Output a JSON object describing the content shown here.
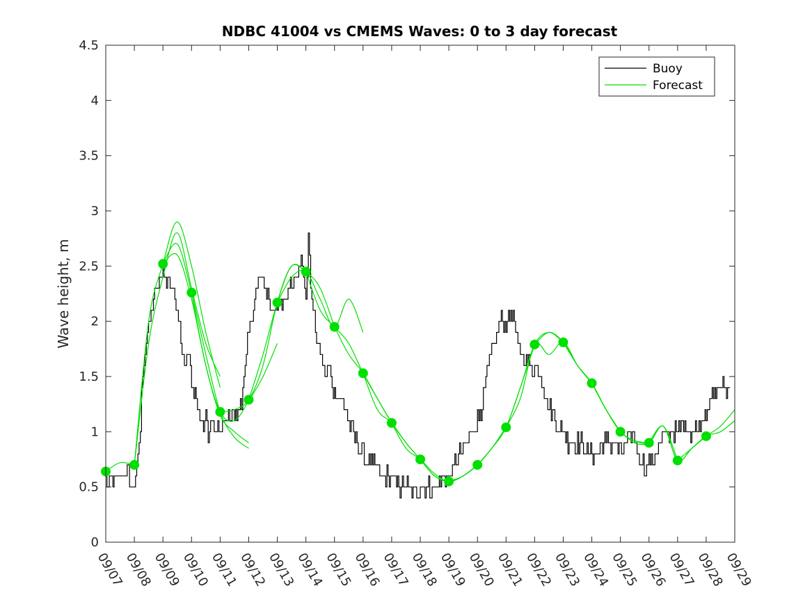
{
  "chart_data": {
    "type": "line",
    "title": "NDBC 41004 vs CMEMS Waves: 0 to 3 day forecast",
    "xlabel": "",
    "ylabel": "Wave height, m",
    "xlim": [
      0,
      22
    ],
    "ylim": [
      0,
      4.5
    ],
    "yticks": [
      0,
      0.5,
      1,
      1.5,
      2,
      2.5,
      3,
      3.5,
      4,
      4.5
    ],
    "ytick_labels": [
      "0",
      "0.5",
      "1",
      "1.5",
      "2",
      "2.5",
      "3",
      "3.5",
      "4",
      "4.5"
    ],
    "xtick_labels": [
      "09/07",
      "09/08",
      "09/09",
      "09/10",
      "09/11",
      "09/12",
      "09/13",
      "09/14",
      "09/15",
      "09/16",
      "09/17",
      "09/18",
      "09/19",
      "09/20",
      "09/21",
      "09/22",
      "09/23",
      "09/24",
      "09/25",
      "09/26",
      "09/27",
      "09/28",
      "09/29"
    ],
    "legend": {
      "position": "top-right",
      "entries": [
        {
          "label": "Buoy",
          "color": "#000000"
        },
        {
          "label": "Forecast",
          "color": "#00e000"
        }
      ]
    },
    "grid": false,
    "series": [
      {
        "name": "Buoy",
        "color": "#000000",
        "x": [
          0,
          0.1,
          0.2,
          0.3,
          0.4,
          0.5,
          0.6,
          0.7,
          0.8,
          0.9,
          1.0,
          1.1,
          1.2,
          1.3,
          1.4,
          1.5,
          1.6,
          1.7,
          1.8,
          1.9,
          2.0,
          2.1,
          2.2,
          2.3,
          2.4,
          2.5,
          2.6,
          2.7,
          2.8,
          2.9,
          3.0,
          3.1,
          3.2,
          3.3,
          3.4,
          3.5,
          3.6,
          3.7,
          3.8,
          3.9,
          4.0,
          4.2,
          4.4,
          4.6,
          4.8,
          5.0,
          5.2,
          5.4,
          5.6,
          5.8,
          6.0,
          6.2,
          6.4,
          6.6,
          6.8,
          7.0,
          7.1,
          7.2,
          7.3,
          7.4,
          7.5,
          7.6,
          7.7,
          7.8,
          7.9,
          8.0,
          8.2,
          8.4,
          8.6,
          8.8,
          9.0,
          9.2,
          9.4,
          9.6,
          9.8,
          10.0,
          10.2,
          10.4,
          10.6,
          10.8,
          11.0,
          11.2,
          11.4,
          11.6,
          11.8,
          12.0,
          12.2,
          12.4,
          12.6,
          12.8,
          13.0,
          13.2,
          13.4,
          13.6,
          13.8,
          14.0,
          14.2,
          14.4,
          14.6,
          14.8,
          15.0,
          15.2,
          15.4,
          15.6,
          15.8,
          16.0,
          16.2,
          16.4,
          16.6,
          16.8,
          17.0,
          17.2,
          17.4,
          17.6,
          17.8,
          18.0,
          18.2,
          18.4,
          18.6,
          18.8,
          19.0,
          19.2,
          19.4,
          19.6,
          19.8,
          20.0,
          20.2,
          20.4,
          20.6,
          20.8,
          21.0,
          21.2,
          21.4,
          21.6,
          21.8,
          22.0
        ],
        "values": [
          0.6,
          0.5,
          0.6,
          0.5,
          0.6,
          0.6,
          0.6,
          0.6,
          0.6,
          0.5,
          0.5,
          0.7,
          1.0,
          1.6,
          1.8,
          1.9,
          2.1,
          2.2,
          2.3,
          2.4,
          2.5,
          2.3,
          2.4,
          2.3,
          2.2,
          2.1,
          1.9,
          1.7,
          1.6,
          1.7,
          1.4,
          1.4,
          1.2,
          1.1,
          1.0,
          1.1,
          1.0,
          1.1,
          1.0,
          1.0,
          1.0,
          1.1,
          1.2,
          1.1,
          1.4,
          1.9,
          2.2,
          2.4,
          2.3,
          2.1,
          2.2,
          2.1,
          2.3,
          2.4,
          2.6,
          2.2,
          2.8,
          2.2,
          2.0,
          1.8,
          1.7,
          1.6,
          1.5,
          1.6,
          1.4,
          1.4,
          1.3,
          1.2,
          1.0,
          0.9,
          0.8,
          0.7,
          0.7,
          0.6,
          0.6,
          0.6,
          0.5,
          0.5,
          0.5,
          0.4,
          0.5,
          0.5,
          0.5,
          0.5,
          0.6,
          0.6,
          0.7,
          0.8,
          0.9,
          1.0,
          1.1,
          1.3,
          1.6,
          1.8,
          2.0,
          2.0,
          2.1,
          1.8,
          1.7,
          1.6,
          1.6,
          1.5,
          1.3,
          1.2,
          1.0,
          1.0,
          0.9,
          0.9,
          0.9,
          0.8,
          0.8,
          0.8,
          0.9,
          0.9,
          0.9,
          0.8,
          0.9,
          1.0,
          0.8,
          0.7,
          0.7,
          0.8,
          0.9,
          1.0,
          1.0,
          1.0,
          1.1,
          1.0,
          1.0,
          1.1,
          1.2,
          1.3,
          1.4,
          1.4,
          1.4,
          1.4
        ],
        "noise": 0.08
      },
      {
        "name": "Forecast",
        "color": "#00e000",
        "runs": [
          {
            "x": [
              0,
              0.5,
              1.0
            ],
            "values": [
              0.64,
              0.72,
              0.7
            ]
          },
          {
            "x": [
              1.0,
              1.5,
              2.0,
              2.5,
              3.0,
              3.5,
              4.0
            ],
            "values": [
              0.7,
              2.0,
              2.52,
              2.9,
              2.5,
              1.9,
              1.4
            ]
          },
          {
            "x": [
              1.0,
              1.5,
              2.0,
              2.5,
              3.0,
              3.5,
              4.0
            ],
            "values": [
              0.7,
              1.8,
              2.4,
              2.8,
              2.3,
              1.8,
              1.5
            ]
          },
          {
            "x": [
              2.0,
              2.5,
              3.0,
              3.5,
              4.0,
              4.5,
              5.0
            ],
            "values": [
              2.52,
              2.7,
              2.26,
              1.7,
              1.18,
              0.95,
              0.85
            ]
          },
          {
            "x": [
              2.0,
              2.5,
              3.0,
              3.5,
              4.0,
              4.5,
              5.0
            ],
            "values": [
              2.52,
              2.6,
              2.2,
              1.6,
              1.15,
              1.0,
              0.9
            ]
          },
          {
            "x": [
              3.0,
              3.5,
              4.0,
              4.5,
              5.0,
              5.5,
              6.0
            ],
            "values": [
              2.26,
              1.6,
              1.18,
              1.1,
              1.28,
              1.5,
              1.8
            ]
          },
          {
            "x": [
              4.0,
              4.5,
              5.0,
              5.5,
              6.0,
              6.5,
              7.0
            ],
            "values": [
              1.18,
              1.2,
              1.29,
              1.6,
              2.17,
              2.5,
              2.45
            ]
          },
          {
            "x": [
              5.0,
              5.5,
              6.0,
              6.5,
              7.0,
              7.5,
              8.0
            ],
            "values": [
              1.29,
              1.7,
              2.17,
              2.5,
              2.45,
              2.3,
              1.95
            ]
          },
          {
            "x": [
              6.0,
              6.5,
              7.0,
              7.5,
              8.0,
              8.5,
              9.0
            ],
            "values": [
              2.17,
              2.4,
              2.45,
              2.2,
              1.95,
              2.2,
              1.9
            ]
          },
          {
            "x": [
              7.0,
              7.5,
              8.0,
              8.5,
              9.0,
              9.5,
              10.0
            ],
            "values": [
              2.45,
              2.1,
              1.95,
              1.8,
              1.53,
              1.3,
              1.08
            ]
          },
          {
            "x": [
              8.0,
              8.5,
              9.0,
              9.5,
              10.0,
              10.5,
              11.0
            ],
            "values": [
              1.95,
              1.7,
              1.53,
              1.3,
              1.08,
              0.9,
              0.75
            ]
          },
          {
            "x": [
              9.0,
              9.5,
              10.0,
              10.5,
              11.0,
              11.5,
              12.0
            ],
            "values": [
              1.53,
              1.2,
              1.08,
              0.9,
              0.75,
              0.6,
              0.55
            ]
          },
          {
            "x": [
              10.0,
              10.5,
              11.0,
              11.5,
              12.0,
              12.5,
              13.0
            ],
            "values": [
              1.08,
              0.85,
              0.75,
              0.62,
              0.55,
              0.6,
              0.7
            ]
          },
          {
            "x": [
              11.0,
              11.5,
              12.0,
              12.5,
              13.0,
              13.5,
              14.0
            ],
            "values": [
              0.75,
              0.6,
              0.55,
              0.6,
              0.7,
              0.85,
              1.04
            ]
          },
          {
            "x": [
              12.0,
              12.5,
              13.0,
              13.5,
              14.0,
              14.5,
              15.0
            ],
            "values": [
              0.55,
              0.6,
              0.7,
              0.85,
              1.04,
              1.4,
              1.79
            ]
          },
          {
            "x": [
              13.0,
              13.5,
              14.0,
              14.5,
              15.0,
              15.5,
              16.0
            ],
            "values": [
              0.7,
              0.85,
              1.04,
              1.4,
              1.79,
              1.9,
              1.81
            ]
          },
          {
            "x": [
              14.0,
              14.5,
              15.0,
              15.5,
              16.0,
              16.5,
              17.0
            ],
            "values": [
              1.04,
              1.3,
              1.79,
              1.7,
              1.81,
              1.6,
              1.44
            ]
          },
          {
            "x": [
              15.0,
              15.5,
              16.0,
              16.5,
              17.0,
              17.5,
              18.0
            ],
            "values": [
              1.79,
              1.9,
              1.81,
              1.6,
              1.44,
              1.2,
              1.0
            ]
          },
          {
            "x": [
              16.0,
              16.5,
              17.0,
              17.5,
              18.0,
              18.5,
              19.0
            ],
            "values": [
              1.81,
              1.6,
              1.44,
              1.2,
              1.0,
              0.92,
              0.9
            ]
          },
          {
            "x": [
              17.0,
              17.5,
              18.0,
              18.5,
              19.0,
              19.5,
              20.0
            ],
            "values": [
              1.44,
              1.2,
              1.0,
              0.92,
              0.9,
              1.05,
              0.74
            ]
          },
          {
            "x": [
              18.0,
              18.5,
              19.0,
              19.5,
              20.0,
              20.5,
              21.0
            ],
            "values": [
              1.0,
              0.9,
              0.9,
              1.05,
              0.74,
              0.85,
              0.96
            ]
          },
          {
            "x": [
              19.0,
              19.5,
              20.0,
              20.5,
              21.0,
              21.5,
              22.0
            ],
            "values": [
              0.9,
              1.05,
              0.74,
              0.85,
              0.96,
              1.05,
              1.2
            ]
          },
          {
            "x": [
              20.0,
              20.5,
              21.0,
              21.5,
              22.0
            ],
            "values": [
              0.74,
              0.85,
              0.96,
              1.0,
              1.1
            ]
          }
        ],
        "markers": {
          "x": [
            0,
            1,
            2,
            3,
            4,
            5,
            6,
            7,
            8,
            9,
            10,
            11,
            12,
            13,
            14,
            15,
            16,
            17,
            18,
            19,
            20,
            21
          ],
          "values": [
            0.64,
            0.7,
            2.52,
            2.26,
            1.18,
            1.29,
            2.17,
            2.45,
            1.95,
            1.53,
            1.08,
            0.75,
            0.55,
            0.7,
            1.04,
            1.79,
            1.81,
            1.44,
            1.0,
            0.9,
            0.74,
            0.96
          ]
        }
      }
    ]
  }
}
